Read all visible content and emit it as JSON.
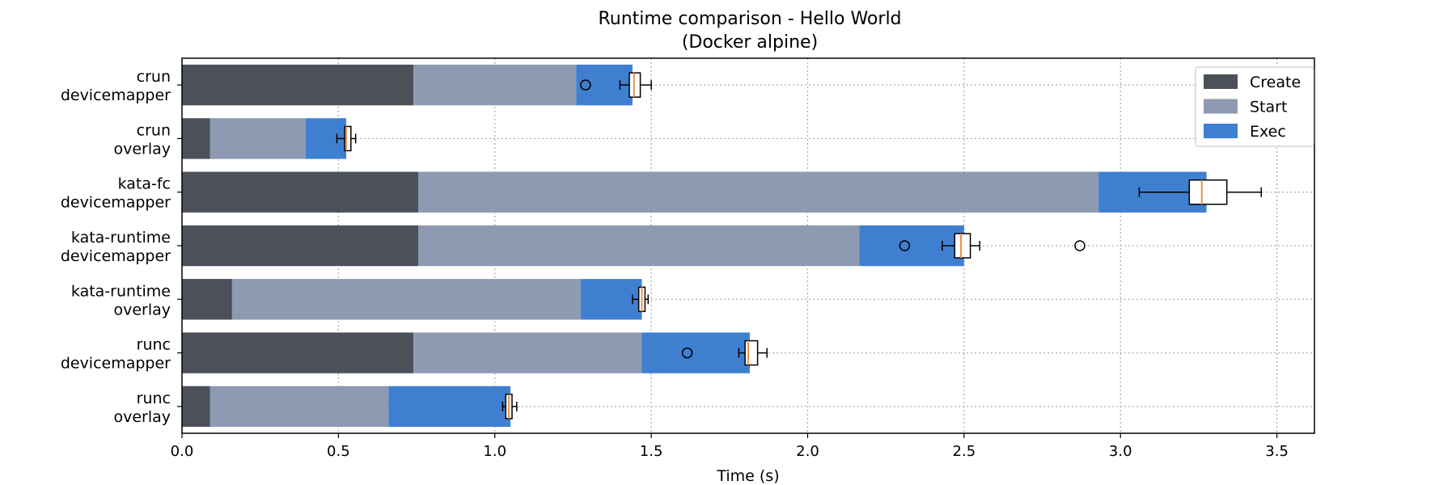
{
  "chart_data": {
    "type": "bar",
    "orientation": "horizontal",
    "stacked": true,
    "title": "Runtime comparison - Hello World",
    "subtitle": "(Docker alpine)",
    "xlabel": "Time (s)",
    "ylabel": "",
    "xlim": [
      0,
      3.62
    ],
    "xticks": [
      "0.0",
      "0.5",
      "1.0",
      "1.5",
      "2.0",
      "2.5",
      "3.0",
      "3.5"
    ],
    "grid": true,
    "legend_position": "top-right",
    "categories": [
      [
        "crun",
        "devicemapper"
      ],
      [
        "crun",
        "overlay"
      ],
      [
        "kata-fc",
        "devicemapper"
      ],
      [
        "kata-runtime",
        "devicemapper"
      ],
      [
        "kata-runtime",
        "overlay"
      ],
      [
        "runc",
        "devicemapper"
      ],
      [
        "runc",
        "overlay"
      ]
    ],
    "series": [
      {
        "name": "Create",
        "color": "#4b5059",
        "values": [
          0.74,
          0.09,
          0.755,
          0.755,
          0.16,
          0.74,
          0.09
        ]
      },
      {
        "name": "Start",
        "color": "#8d9ab1",
        "values": [
          0.52,
          0.305,
          2.175,
          1.41,
          1.115,
          0.73,
          0.57
        ]
      },
      {
        "name": "Exec",
        "color": "#3f7fd0",
        "values": [
          0.18,
          0.13,
          0.345,
          0.335,
          0.195,
          0.345,
          0.39
        ]
      }
    ],
    "boxplots": [
      {
        "min": 1.4,
        "q1": 1.43,
        "median": 1.445,
        "q3": 1.465,
        "max": 1.5,
        "outliers": [
          1.29
        ]
      },
      {
        "min": 0.495,
        "q1": 0.52,
        "median": 0.525,
        "q3": 0.54,
        "max": 0.555,
        "outliers": []
      },
      {
        "min": 3.06,
        "q1": 3.22,
        "median": 3.26,
        "q3": 3.34,
        "max": 3.45,
        "outliers": []
      },
      {
        "min": 2.43,
        "q1": 2.47,
        "median": 2.49,
        "q3": 2.52,
        "max": 2.55,
        "outliers": [
          2.31,
          2.87
        ]
      },
      {
        "min": 1.44,
        "q1": 1.46,
        "median": 1.47,
        "q3": 1.48,
        "max": 1.49,
        "outliers": []
      },
      {
        "min": 1.78,
        "q1": 1.8,
        "median": 1.81,
        "q3": 1.84,
        "max": 1.87,
        "outliers": [
          1.615
        ]
      },
      {
        "min": 1.025,
        "q1": 1.035,
        "median": 1.045,
        "q3": 1.055,
        "max": 1.07,
        "outliers": []
      }
    ],
    "colors": {
      "median": "#e8914a",
      "grid": "#aaaaaa",
      "legend_border": "#cccccc"
    }
  }
}
